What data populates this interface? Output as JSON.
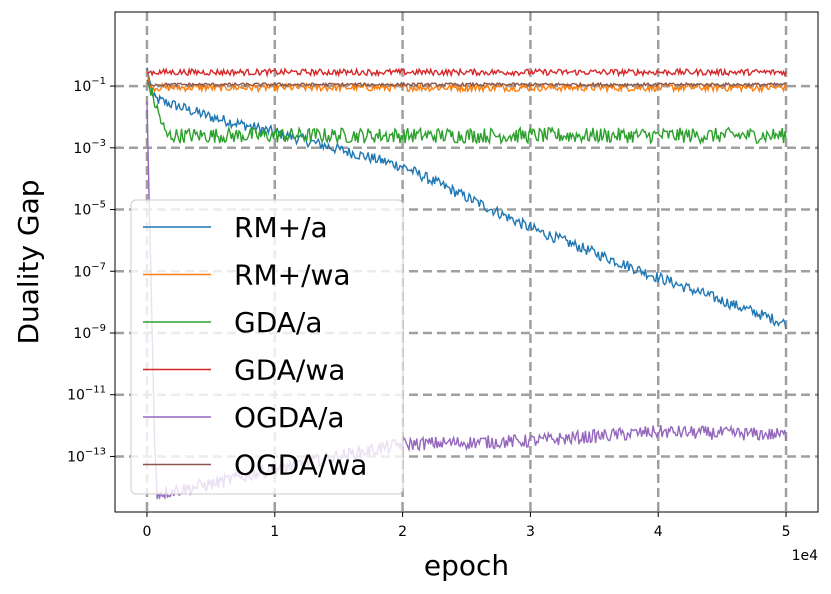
{
  "chart_data": {
    "type": "line",
    "title": "",
    "xlabel": "epoch",
    "ylabel": "Duality Gap",
    "x_offset_label": "1e4",
    "xlim": [
      -0.25,
      5.25
    ],
    "ylim_log10": [
      -14.8,
      1.4
    ],
    "yscale": "log",
    "grid": true,
    "legend_position": "lower-left",
    "x_ticks": [
      0,
      1,
      2,
      3,
      4,
      5
    ],
    "x_tick_labels": [
      "0",
      "1",
      "2",
      "3",
      "4",
      "5"
    ],
    "y_ticks_log10": [
      -1,
      -3,
      -5,
      -7,
      -9,
      -11,
      -13
    ],
    "y_tick_labels": [
      {
        "base": "10",
        "exp": "−1"
      },
      {
        "base": "10",
        "exp": "−3"
      },
      {
        "base": "10",
        "exp": "−5"
      },
      {
        "base": "10",
        "exp": "−7"
      },
      {
        "base": "10",
        "exp": "−9"
      },
      {
        "base": "10",
        "exp": "−11"
      },
      {
        "base": "10",
        "exp": "−13"
      }
    ],
    "series": [
      {
        "name": "RM+/a",
        "color": "#1f77b4",
        "start_log10": -0.4,
        "trend": [
          [
            0,
            -0.4
          ],
          [
            0.05,
            -1.4
          ],
          [
            0.5,
            -2.0
          ],
          [
            1,
            -2.5
          ],
          [
            2,
            -3.6
          ],
          [
            3,
            -5.6
          ],
          [
            4,
            -7.2
          ],
          [
            5,
            -8.7
          ]
        ],
        "noise": 0.18
      },
      {
        "name": "RM+/wa",
        "color": "#ff7f0e",
        "start_log10": -0.5,
        "trend": [
          [
            0,
            -0.5
          ],
          [
            0.02,
            -1.05
          ],
          [
            5,
            -1.05
          ]
        ],
        "noise": 0.12
      },
      {
        "name": "GDA/a",
        "color": "#2ca02c",
        "start_log10": -0.8,
        "trend": [
          [
            0,
            -0.8
          ],
          [
            0.15,
            -2.6
          ],
          [
            5,
            -2.6
          ]
        ],
        "noise": 0.25
      },
      {
        "name": "GDA/wa",
        "color": "#d62728",
        "start_log10": -0.6,
        "trend": [
          [
            0,
            -0.6
          ],
          [
            0.02,
            -0.55
          ],
          [
            5,
            -0.55
          ]
        ],
        "noise": 0.1
      },
      {
        "name": "OGDA/a",
        "color": "#9467bd",
        "start_log10": -1.5,
        "trend": [
          [
            0,
            -1.5
          ],
          [
            0.06,
            -12.5
          ],
          [
            0.08,
            -14.2
          ],
          [
            0.5,
            -13.9
          ],
          [
            1,
            -13.4
          ],
          [
            2,
            -12.6
          ],
          [
            3,
            -12.5
          ],
          [
            4,
            -12.2
          ],
          [
            5,
            -12.3
          ]
        ],
        "noise": 0.22
      },
      {
        "name": "OGDA/wa",
        "color": "#8c564b",
        "start_log10": -0.8,
        "trend": [
          [
            0,
            -0.8
          ],
          [
            0.02,
            -0.95
          ],
          [
            5,
            -0.95
          ]
        ],
        "noise": 0.05
      }
    ]
  }
}
